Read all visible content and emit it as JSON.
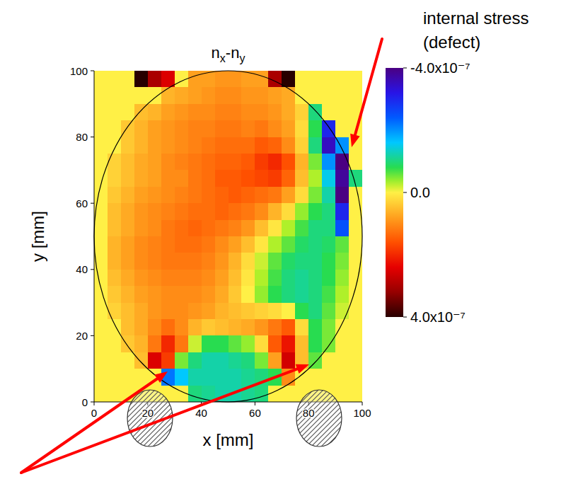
{
  "chart_data": {
    "type": "heatmap",
    "title": "nx-ny",
    "xlabel": "x [mm]",
    "ylabel": "y [mm]",
    "xlim": [
      0,
      100
    ],
    "ylim": [
      0,
      100
    ],
    "xticks": [
      0,
      20,
      40,
      60,
      80,
      100
    ],
    "yticks": [
      0,
      20,
      40,
      60,
      80,
      100
    ],
    "annotations": [
      {
        "lines": [
          "internal stress",
          "(defect)"
        ]
      }
    ],
    "colorbar": {
      "range": [
        -4e-07,
        4e-07
      ],
      "ticks": [
        {
          "value": -4e-07,
          "label": "-4.0x10⁻⁷"
        },
        {
          "value": 0,
          "label": "0.0"
        },
        {
          "value": 4e-07,
          "label": "4.0x10⁻⁷"
        }
      ]
    },
    "x": [
      2.5,
      7.5,
      12.5,
      17.5,
      22.5,
      27.5,
      32.5,
      37.5,
      42.5,
      47.5,
      52.5,
      57.5,
      62.5,
      67.5,
      72.5,
      77.5,
      82.5,
      87.5,
      92.5,
      97.5
    ],
    "y": [
      97.5,
      92.5,
      87.5,
      82.5,
      77.5,
      72.5,
      67.5,
      62.5,
      57.5,
      52.5,
      47.5,
      42.5,
      37.5,
      32.5,
      27.5,
      22.5,
      17.5,
      12.5,
      7.5,
      2.5
    ],
    "z": [
      [
        0,
        0,
        0,
        4e-07,
        3e-07,
        2.5e-07,
        0,
        8e-08,
        8e-08,
        9e-08,
        9e-08,
        8e-08,
        8e-08,
        3e-07,
        4e-07,
        0,
        0,
        0,
        0,
        0
      ],
      [
        0,
        0,
        0,
        0,
        0,
        6e-08,
        7e-08,
        8e-08,
        9e-08,
        1e-07,
        1e-07,
        9e-08,
        9e-08,
        8e-08,
        7e-08,
        0,
        0,
        0,
        0,
        0
      ],
      [
        0,
        0,
        0,
        5e-08,
        6e-08,
        8e-08,
        9e-08,
        1e-07,
        1e-07,
        1.1e-07,
        1.1e-07,
        1e-07,
        1e-07,
        9e-08,
        7e-08,
        3e-08,
        -1e-07,
        0,
        0,
        0
      ],
      [
        0,
        0,
        4e-08,
        6e-08,
        8e-08,
        9e-08,
        1e-07,
        1.1e-07,
        1.1e-07,
        1.2e-07,
        1.2e-07,
        1.1e-07,
        1.2e-07,
        1e-07,
        8e-08,
        2e-08,
        -8e-08,
        -3e-07,
        0,
        0
      ],
      [
        0,
        0,
        4e-08,
        6e-08,
        8e-08,
        9e-08,
        1e-07,
        1.1e-07,
        1.2e-07,
        1.3e-07,
        1.3e-07,
        1.3e-07,
        1.5e-07,
        1.4e-07,
        1e-07,
        3e-08,
        -1e-07,
        -3.5e-07,
        -2e-07,
        0
      ],
      [
        0,
        3e-08,
        5e-08,
        7e-08,
        8e-08,
        1e-07,
        1.1e-07,
        1.2e-07,
        1.3e-07,
        1.4e-07,
        1.4e-07,
        1.5e-07,
        1.8e-07,
        2e-07,
        1.6e-07,
        6e-08,
        -5e-08,
        -2e-07,
        -4e-07,
        0
      ],
      [
        0,
        3e-08,
        5e-08,
        7e-08,
        8e-08,
        1e-07,
        1e-07,
        1.2e-07,
        1.3e-07,
        1.5e-07,
        1.5e-07,
        1.6e-07,
        1.7e-07,
        1.8e-07,
        1.4e-07,
        5e-08,
        -3e-08,
        -1.5e-07,
        -3.8e-07,
        -1e-07
      ],
      [
        0,
        4e-08,
        6e-08,
        8e-08,
        9e-08,
        1e-07,
        1.1e-07,
        1.2e-07,
        1.3e-07,
        1.4e-07,
        1.5e-07,
        1.4e-07,
        1.3e-07,
        1.2e-07,
        8e-08,
        2e-08,
        -5e-08,
        -1.2e-07,
        -4e-07,
        0
      ],
      [
        0,
        5e-08,
        7e-08,
        9e-08,
        1e-07,
        1.1e-07,
        1.2e-07,
        1.3e-07,
        1.3e-07,
        1.4e-07,
        1.3e-07,
        1.2e-07,
        1e-07,
        6e-08,
        2e-08,
        -4e-08,
        -8e-08,
        -1e-07,
        -3e-07,
        0
      ],
      [
        0,
        5e-08,
        7e-08,
        9e-08,
        1e-07,
        1.2e-07,
        1.3e-07,
        1.4e-07,
        1.3e-07,
        1.2e-07,
        1.1e-07,
        9e-08,
        5e-08,
        1e-08,
        -3e-08,
        -7e-08,
        -1e-07,
        -1e-07,
        -2.5e-07,
        0
      ],
      [
        0,
        6e-08,
        8e-08,
        1e-07,
        1.1e-07,
        1.2e-07,
        1.3e-07,
        1.3e-07,
        1.2e-07,
        1e-07,
        8e-08,
        5e-08,
        1e-08,
        -3e-08,
        -6e-08,
        -9e-08,
        -1e-07,
        -9e-08,
        -6e-08,
        0
      ],
      [
        0,
        6e-08,
        8e-08,
        1e-07,
        1.1e-07,
        1.2e-07,
        1.2e-07,
        1.2e-07,
        1.1e-07,
        9e-08,
        6e-08,
        2e-08,
        -2e-08,
        -6e-08,
        -9e-08,
        -1e-07,
        -1e-07,
        -8e-08,
        -5e-08,
        0
      ],
      [
        0,
        5e-08,
        7e-08,
        9e-08,
        1e-07,
        1.1e-07,
        1.1e-07,
        1.1e-07,
        1e-07,
        8e-08,
        5e-08,
        1e-08,
        -3e-08,
        -7e-08,
        -1e-07,
        -1.1e-07,
        -1e-07,
        -8e-08,
        -4e-08,
        0
      ],
      [
        0,
        4e-08,
        6e-08,
        8e-08,
        9e-08,
        1e-07,
        1e-07,
        1e-07,
        9e-08,
        7e-08,
        4e-08,
        0,
        -4e-08,
        -8e-08,
        -1e-07,
        -1.1e-07,
        -1e-07,
        -7e-08,
        -3e-08,
        0
      ],
      [
        0,
        3e-08,
        5e-08,
        7e-08,
        9e-08,
        1e-07,
        1e-07,
        9e-08,
        8e-08,
        6e-08,
        5e-08,
        4e-08,
        3e-08,
        2e-08,
        0,
        -8e-08,
        -1e-07,
        -6e-08,
        -2e-08,
        0
      ],
      [
        0,
        0,
        5e-08,
        7e-08,
        1e-07,
        1.3e-07,
        1e-07,
        6e-08,
        4e-08,
        5e-08,
        6e-08,
        7e-08,
        9e-08,
        1.2e-07,
        1.5e-07,
        2e-08,
        -8e-08,
        -5e-08,
        0,
        0
      ],
      [
        0,
        0,
        4e-08,
        6e-08,
        1.2e-07,
        2e-07,
        1.2e-07,
        -2e-08,
        -8e-08,
        -8e-08,
        -6e-08,
        -4e-08,
        2e-08,
        1.5e-07,
        2.2e-07,
        5e-08,
        -8e-08,
        -5e-08,
        0,
        0
      ],
      [
        0,
        0,
        0,
        5e-08,
        2.5e-07,
        1.8e-07,
        -5e-08,
        -1e-07,
        -1.2e-07,
        -1.2e-07,
        -1.1e-07,
        -1e-07,
        -5e-08,
        8e-08,
        2.6e-07,
        5e-08,
        -6e-08,
        0,
        0,
        0
      ],
      [
        0,
        0,
        0,
        0,
        0,
        -2.2e-07,
        -1.6e-07,
        -1.2e-07,
        -1.2e-07,
        -1.2e-07,
        -1.2e-07,
        -1.1e-07,
        -1e-07,
        -8e-08,
        1e-07,
        0,
        0,
        0,
        0,
        0
      ],
      [
        0,
        0,
        0,
        0,
        0,
        0,
        0,
        -1e-07,
        -1.1e-07,
        -1.2e-07,
        -1.2e-07,
        -1.1e-07,
        -1e-07,
        0,
        0,
        0,
        0,
        0,
        0,
        0
      ]
    ]
  }
}
